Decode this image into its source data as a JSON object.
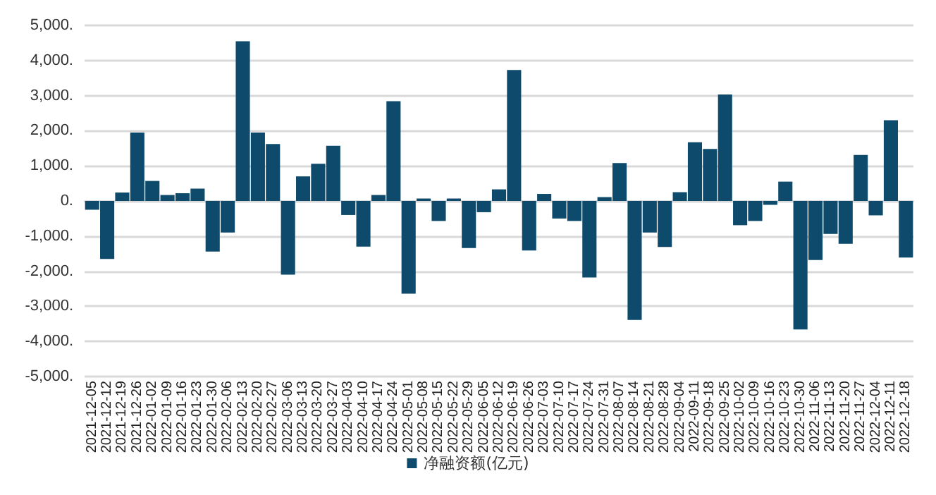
{
  "chart_data": {
    "type": "bar",
    "categories": [
      "2021-12-05",
      "2021-12-12",
      "2021-12-19",
      "2021-12-26",
      "2022-01-02",
      "2022-01-09",
      "2022-01-16",
      "2022-01-23",
      "2022-01-30",
      "2022-02-06",
      "2022-02-13",
      "2022-02-20",
      "2022-02-27",
      "2022-03-06",
      "2022-03-13",
      "2022-03-20",
      "2022-03-27",
      "2022-04-03",
      "2022-04-10",
      "2022-04-17",
      "2022-04-24",
      "2022-05-01",
      "2022-05-08",
      "2022-05-15",
      "2022-05-22",
      "2022-05-29",
      "2022-06-05",
      "2022-06-12",
      "2022-06-19",
      "2022-06-26",
      "2022-07-03",
      "2022-07-10",
      "2022-07-17",
      "2022-07-24",
      "2022-07-31",
      "2022-08-07",
      "2022-08-14",
      "2022-08-21",
      "2022-08-28",
      "2022-09-04",
      "2022-09-11",
      "2022-09-18",
      "2022-09-25",
      "2022-10-02",
      "2022-10-09",
      "2022-10-16",
      "2022-10-23",
      "2022-10-30",
      "2022-11-06",
      "2022-11-13",
      "2022-11-20",
      "2022-11-27",
      "2022-12-04",
      "2022-12-11",
      "2022-12-18"
    ],
    "series": [
      {
        "name": "净融资额(亿元)",
        "color": "#0d4a6b",
        "values": [
          -250,
          -1650,
          240,
          1950,
          570,
          170,
          220,
          350,
          -1440,
          -900,
          4550,
          1950,
          1620,
          -2100,
          700,
          1060,
          1570,
          -400,
          -1300,
          170,
          2840,
          -2640,
          70,
          -570,
          70,
          -1340,
          -320,
          330,
          3730,
          -1410,
          200,
          -500,
          -570,
          -2180,
          110,
          1080,
          -3390,
          -900,
          -1310,
          250,
          1670,
          1480,
          3030,
          -690,
          -570,
          -110,
          550,
          -3660,
          -1680,
          -940,
          -1220,
          1310,
          -410,
          2300,
          -1610
        ]
      }
    ],
    "ylim": [
      -5000,
      5000
    ],
    "yticks": [
      {
        "value": -5000,
        "label": "-5,000."
      },
      {
        "value": -4000,
        "label": "-4,000."
      },
      {
        "value": -3000,
        "label": "-3,000."
      },
      {
        "value": -2000,
        "label": "-2,000."
      },
      {
        "value": -1000,
        "label": "-1,000."
      },
      {
        "value": 0,
        "label": "0."
      },
      {
        "value": 1000,
        "label": "1,000."
      },
      {
        "value": 2000,
        "label": "2,000."
      },
      {
        "value": 3000,
        "label": "3,000."
      },
      {
        "value": 4000,
        "label": "4,000."
      },
      {
        "value": 5000,
        "label": "5,000."
      }
    ],
    "grid": "y",
    "legend": "bottom"
  }
}
